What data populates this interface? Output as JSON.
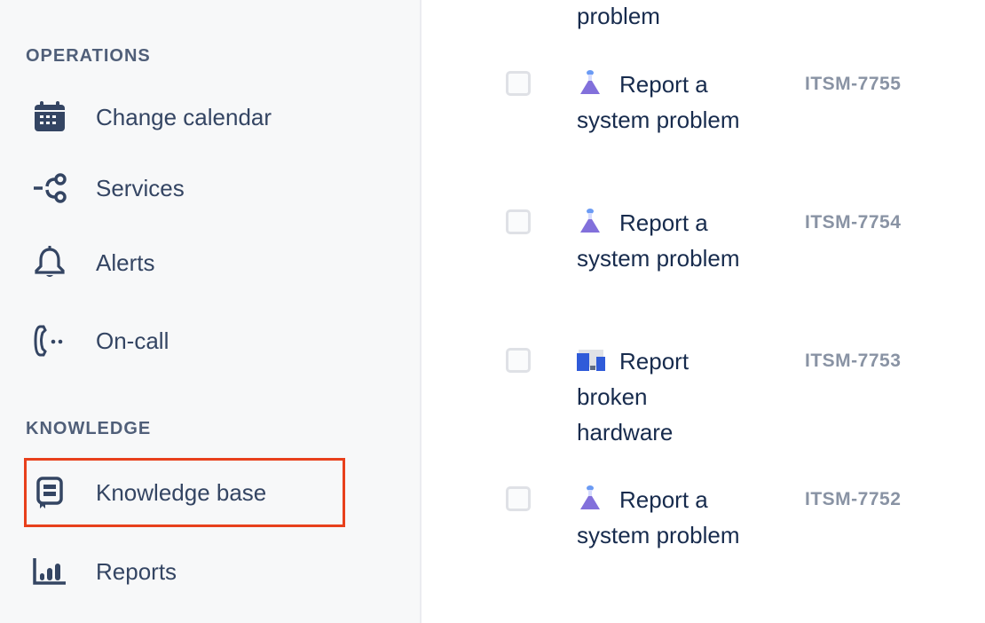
{
  "sidebar": {
    "operations_header": "OPERATIONS",
    "operations": [
      {
        "label": "Change calendar",
        "icon": "calendar-icon"
      },
      {
        "label": "Services",
        "icon": "services-icon"
      },
      {
        "label": "Alerts",
        "icon": "bell-icon"
      },
      {
        "label": "On-call",
        "icon": "phone-icon"
      }
    ],
    "knowledge_header": "KNOWLEDGE",
    "knowledge": [
      {
        "label": "Knowledge base",
        "icon": "book-icon",
        "highlighted": true
      },
      {
        "label": "Reports",
        "icon": "chart-icon"
      }
    ],
    "highlight_color": "#e8401c"
  },
  "issues": {
    "partial_title": "problem",
    "rows": [
      {
        "title": "Report a system problem",
        "id": "ITSM-7755",
        "icon": "flask-icon"
      },
      {
        "title": "Report a system problem",
        "id": "ITSM-7754",
        "icon": "flask-icon"
      },
      {
        "title": "Report broken hardware",
        "id": "ITSM-7753",
        "icon": "devices-icon"
      },
      {
        "title": "Report a system problem",
        "id": "ITSM-7752",
        "icon": "flask-icon"
      }
    ]
  }
}
